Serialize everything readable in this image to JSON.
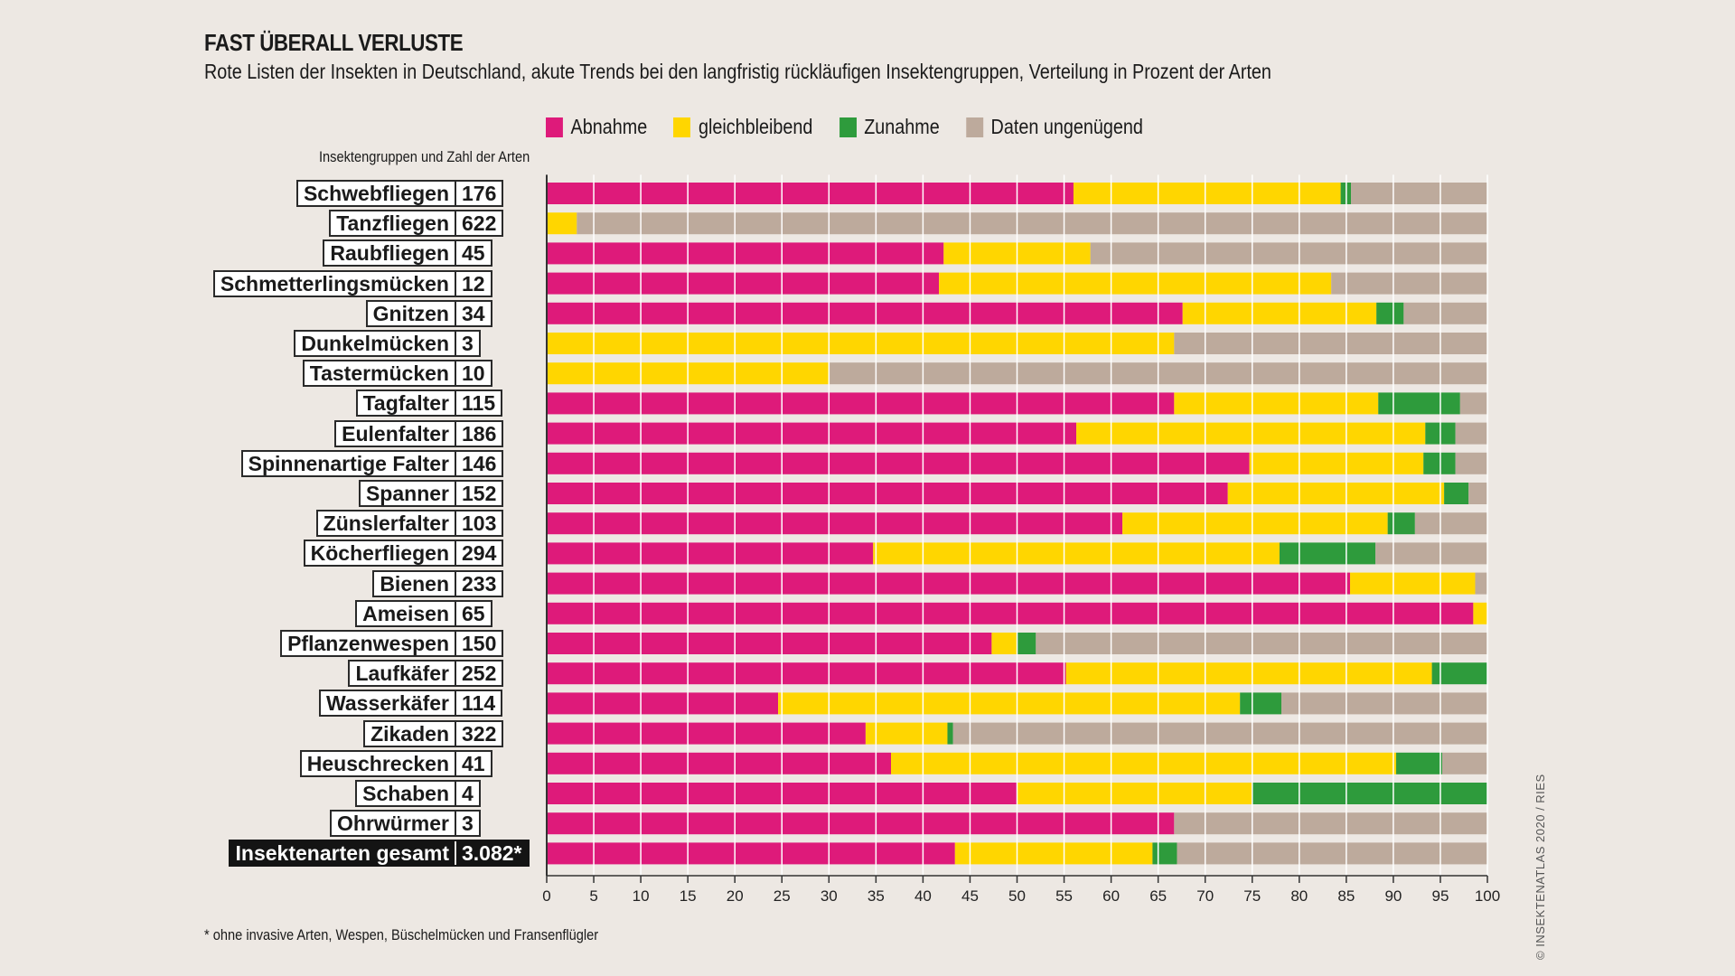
{
  "title": "FAST ÜBERALL VERLUSTE",
  "subtitle": "Rote Listen der Insekten in Deutschland, akute Trends bei den langfristig rückläufigen Insektengruppen, Verteilung in Prozent der Arten",
  "groups_heading": "Insektengruppen und Zahl der Arten",
  "footnote": "* ohne invasive Arten, Wespen, Büschelmücken und Fransenflügler",
  "credit": "© INSEKTENATLAS 2020 / RIES",
  "colors": {
    "abnahme": "#de1a7a",
    "gleichbleibend": "#ffd600",
    "zunahme": "#2e9b3c",
    "daten_ungenuegend": "#bdaa9c",
    "background": "#ede8e3"
  },
  "legend": [
    {
      "key": "abnahme",
      "label": "Abnahme"
    },
    {
      "key": "gleichbleibend",
      "label": "gleichbleibend"
    },
    {
      "key": "zunahme",
      "label": "Zunahme"
    },
    {
      "key": "daten_ungenuegend",
      "label": "Daten ungenügend"
    }
  ],
  "chart_data": {
    "type": "bar",
    "orientation": "horizontal",
    "stacked": true,
    "title": "FAST ÜBERALL VERLUSTE",
    "subtitle": "Rote Listen der Insekten in Deutschland, akute Trends bei den langfristig rückläufigen Insektengruppen, Verteilung in Prozent der Arten",
    "xlabel": "",
    "ylabel": "Insektengruppen und Zahl der Arten",
    "xlim": [
      0,
      100
    ],
    "xticks": [
      0,
      5,
      10,
      15,
      20,
      25,
      30,
      35,
      40,
      45,
      50,
      55,
      60,
      65,
      70,
      75,
      80,
      85,
      90,
      95,
      100
    ],
    "grid": "vertical white lines every 5",
    "legend_position": "top",
    "categories": [
      {
        "name": "Schwebfliegen",
        "count": "176"
      },
      {
        "name": "Tanzfliegen",
        "count": "622"
      },
      {
        "name": "Raubfliegen",
        "count": "45"
      },
      {
        "name": "Schmetterlingsmücken",
        "count": "12"
      },
      {
        "name": "Gnitzen",
        "count": "34"
      },
      {
        "name": "Dunkelmücken",
        "count": "3"
      },
      {
        "name": "Tastermücken",
        "count": "10"
      },
      {
        "name": "Tagfalter",
        "count": "115"
      },
      {
        "name": "Eulenfalter",
        "count": "186"
      },
      {
        "name": "Spinnenartige Falter",
        "count": "146"
      },
      {
        "name": "Spanner",
        "count": "152"
      },
      {
        "name": "Zünslerfalter",
        "count": "103"
      },
      {
        "name": "Köcherfliegen",
        "count": "294"
      },
      {
        "name": "Bienen",
        "count": "233"
      },
      {
        "name": "Ameisen",
        "count": "65"
      },
      {
        "name": "Pflanzenwespen",
        "count": "150"
      },
      {
        "name": "Laufkäfer",
        "count": "252"
      },
      {
        "name": "Wasserkäfer",
        "count": "114"
      },
      {
        "name": "Zikaden",
        "count": "322"
      },
      {
        "name": "Heuschrecken",
        "count": "41"
      },
      {
        "name": "Schaben",
        "count": "4"
      },
      {
        "name": "Ohrwürmer",
        "count": "3"
      },
      {
        "name": "Insektenarten gesamt",
        "count": "3.082*",
        "total": true
      }
    ],
    "series": [
      {
        "key": "abnahme",
        "name": "Abnahme",
        "values": [
          56.0,
          0.0,
          42.2,
          41.7,
          67.6,
          0.0,
          0.0,
          66.7,
          56.3,
          74.7,
          72.4,
          61.2,
          34.7,
          85.4,
          98.5,
          47.3,
          55.2,
          24.6,
          33.9,
          36.6,
          50.0,
          66.7,
          43.4
        ]
      },
      {
        "key": "gleichbleibend",
        "name": "gleichbleibend",
        "values": [
          28.4,
          3.2,
          15.6,
          41.7,
          20.6,
          66.7,
          30.0,
          21.7,
          37.1,
          18.5,
          23.0,
          28.2,
          43.2,
          13.3,
          1.5,
          2.7,
          38.9,
          49.1,
          8.7,
          53.7,
          25.0,
          0.0,
          21.0
        ]
      },
      {
        "key": "zunahme",
        "name": "Zunahme",
        "values": [
          1.1,
          0.0,
          0.0,
          0.0,
          2.9,
          0.0,
          0.0,
          8.7,
          3.2,
          3.4,
          2.6,
          2.9,
          10.2,
          0.0,
          0.0,
          2.0,
          5.9,
          4.4,
          0.6,
          4.9,
          25.0,
          0.0,
          2.6
        ]
      },
      {
        "key": "daten_ungenuegend",
        "name": "Daten ungenügend",
        "values": [
          14.5,
          96.8,
          42.2,
          16.6,
          8.9,
          33.3,
          70.0,
          2.9,
          3.4,
          3.4,
          2.0,
          7.7,
          11.9,
          1.3,
          0.0,
          48.0,
          0.0,
          21.9,
          56.8,
          4.8,
          0.0,
          33.3,
          33.0
        ]
      }
    ]
  }
}
